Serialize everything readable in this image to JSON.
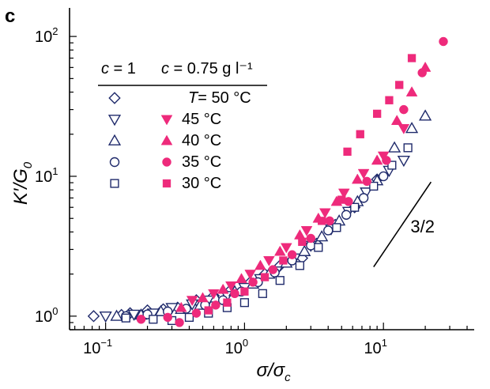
{
  "panel_label": "c",
  "colors": {
    "open": "#1f2a6b",
    "filled": "#ee2a7b",
    "axis": "#000000"
  },
  "chart_data": {
    "type": "scatter",
    "title": "",
    "xlabel": "σ/σc",
    "ylabel": "K′/G0",
    "xscale": "log",
    "yscale": "log",
    "xlim": [
      0.055,
      45
    ],
    "ylim": [
      0.8,
      160
    ],
    "xticks": [
      0.1,
      1,
      10
    ],
    "xtick_labels": [
      {
        "base": "10",
        "exp": "−1"
      },
      {
        "base": "10",
        "exp": "0"
      },
      {
        "base": "10",
        "exp": "1"
      }
    ],
    "yticks": [
      1,
      10,
      100
    ],
    "ytick_labels": [
      {
        "base": "10",
        "exp": "0"
      },
      {
        "base": "10",
        "exp": "1"
      },
      {
        "base": "10",
        "exp": "2"
      }
    ],
    "legend": {
      "placement": "top-left",
      "col1_header": "c = 1",
      "col2_header": "c = 0.75 g l⁻¹",
      "entries": [
        {
          "label": "T= 50 °C",
          "open_marker": "diamond",
          "filled_marker": null
        },
        {
          "label": "45 °C",
          "open_marker": "triangle-down",
          "filled_marker": "triangle-down"
        },
        {
          "label": "40 °C",
          "open_marker": "triangle-up",
          "filled_marker": "triangle-up"
        },
        {
          "label": "35 °C",
          "open_marker": "circle",
          "filled_marker": "circle"
        },
        {
          "label": "30 °C",
          "open_marker": "square",
          "filled_marker": "square"
        }
      ]
    },
    "annotation": {
      "text": "3/2",
      "slope": 1.5,
      "x0": 8.5,
      "y0": 2.25,
      "x1": 22,
      "y1": 9.1
    },
    "series": [
      {
        "concentration": "c = 1",
        "temperature": "50 °C",
        "marker": "diamond",
        "filled": false,
        "points": [
          [
            0.082,
            1.0
          ],
          [
            0.13,
            1.02
          ],
          [
            0.15,
            1.05
          ],
          [
            0.2,
            1.1
          ],
          [
            0.26,
            1.12
          ],
          [
            0.33,
            1.15
          ],
          [
            0.45,
            1.3
          ],
          [
            0.6,
            1.4
          ],
          [
            0.8,
            1.55
          ],
          [
            1.1,
            1.75
          ],
          [
            1.4,
            2.0
          ],
          [
            1.8,
            2.3
          ],
          [
            2.6,
            2.6
          ],
          [
            3.3,
            3.3
          ],
          [
            4.5,
            4.5
          ],
          [
            6.2,
            6.0
          ],
          [
            9.0,
            9.5
          ]
        ]
      },
      {
        "concentration": "c = 1",
        "temperature": "45 °C",
        "marker": "triangle-down",
        "filled": false,
        "points": [
          [
            0.1,
            1.0
          ],
          [
            0.16,
            1.03
          ],
          [
            0.22,
            1.05
          ],
          [
            0.3,
            1.15
          ],
          [
            0.42,
            1.22
          ],
          [
            0.55,
            1.3
          ],
          [
            0.75,
            1.4
          ],
          [
            1.0,
            1.6
          ],
          [
            1.3,
            1.85
          ],
          [
            1.7,
            2.1
          ],
          [
            2.3,
            2.6
          ],
          [
            3.0,
            3.2
          ],
          [
            4.2,
            4.2
          ],
          [
            5.6,
            5.6
          ],
          [
            7.5,
            7.7
          ],
          [
            11,
            11
          ],
          [
            14,
            13
          ]
        ]
      },
      {
        "concentration": "c = 1",
        "temperature": "40 °C",
        "marker": "triangle-up",
        "filled": false,
        "points": [
          [
            0.12,
            1.0
          ],
          [
            0.18,
            1.02
          ],
          [
            0.25,
            1.08
          ],
          [
            0.35,
            1.12
          ],
          [
            0.48,
            1.2
          ],
          [
            0.62,
            1.35
          ],
          [
            0.85,
            1.5
          ],
          [
            1.15,
            1.7
          ],
          [
            1.5,
            2.0
          ],
          [
            2.0,
            2.4
          ],
          [
            2.7,
            2.9
          ],
          [
            3.6,
            3.7
          ],
          [
            4.8,
            4.8
          ],
          [
            6.5,
            6.6
          ],
          [
            9.0,
            9.3
          ],
          [
            12,
            16
          ],
          [
            16,
            22
          ],
          [
            20,
            27
          ]
        ]
      },
      {
        "concentration": "c = 1",
        "temperature": "35 °C",
        "marker": "circle",
        "filled": false,
        "points": [
          [
            0.14,
            1.0
          ],
          [
            0.2,
            1.03
          ],
          [
            0.28,
            1.08
          ],
          [
            0.38,
            1.13
          ],
          [
            0.52,
            1.2
          ],
          [
            0.7,
            1.3
          ],
          [
            0.95,
            1.5
          ],
          [
            1.25,
            1.75
          ],
          [
            1.65,
            2.05
          ],
          [
            2.2,
            2.5
          ],
          [
            3.0,
            3.2
          ],
          [
            4.0,
            4.1
          ],
          [
            5.4,
            5.3
          ],
          [
            7.2,
            7.0
          ],
          [
            10,
            10
          ]
        ]
      },
      {
        "concentration": "c = 1",
        "temperature": "30 °C",
        "marker": "square",
        "filled": false,
        "points": [
          [
            0.14,
            0.97
          ],
          [
            0.22,
            0.95
          ],
          [
            0.3,
            0.93
          ],
          [
            0.4,
            0.98
          ],
          [
            0.55,
            1.05
          ],
          [
            0.75,
            1.15
          ],
          [
            1.0,
            1.25
          ],
          [
            1.35,
            1.45
          ],
          [
            1.8,
            1.8
          ],
          [
            2.5,
            2.3
          ],
          [
            3.4,
            3.1
          ],
          [
            4.6,
            4.3
          ],
          [
            6.2,
            6.0
          ],
          [
            8.5,
            8.5
          ],
          [
            11.5,
            12
          ],
          [
            15,
            16
          ]
        ]
      },
      {
        "concentration": "c = 0.75 g l⁻¹",
        "temperature": "45 °C",
        "marker": "triangle-down",
        "filled": true,
        "points": [
          [
            0.42,
            1.3
          ],
          [
            0.6,
            1.45
          ],
          [
            0.8,
            1.65
          ],
          [
            1.1,
            2.0
          ],
          [
            1.5,
            2.5
          ],
          [
            2.0,
            3.1
          ],
          [
            2.8,
            4.1
          ],
          [
            3.8,
            5.5
          ],
          [
            5.2,
            7.6
          ],
          [
            7.2,
            10.5
          ],
          [
            10,
            14
          ],
          [
            14,
            22
          ]
        ]
      },
      {
        "concentration": "c = 0.75 g l⁻¹",
        "temperature": "40 °C",
        "marker": "triangle-up",
        "filled": true,
        "points": [
          [
            0.35,
            1.15
          ],
          [
            0.5,
            1.35
          ],
          [
            0.7,
            1.55
          ],
          [
            0.95,
            1.85
          ],
          [
            1.3,
            2.3
          ],
          [
            1.8,
            2.9
          ],
          [
            2.5,
            3.8
          ],
          [
            3.4,
            5.0
          ],
          [
            4.6,
            6.6
          ],
          [
            6.5,
            9.5
          ],
          [
            9,
            13
          ],
          [
            12.5,
            25
          ],
          [
            16,
            40
          ],
          [
            20,
            60
          ]
        ]
      },
      {
        "concentration": "c = 0.75 g l⁻¹",
        "temperature": "35 °C",
        "marker": "circle",
        "filled": true,
        "points": [
          [
            0.18,
            0.95
          ],
          [
            0.28,
            0.98
          ],
          [
            0.34,
            0.9
          ],
          [
            0.45,
            1.05
          ],
          [
            0.62,
            1.2
          ],
          [
            0.85,
            1.45
          ],
          [
            1.15,
            1.75
          ],
          [
            1.6,
            2.15
          ],
          [
            2.2,
            2.75
          ],
          [
            3.0,
            3.6
          ],
          [
            4.1,
            4.8
          ],
          [
            5.6,
            6.6
          ],
          [
            7.6,
            9.2
          ],
          [
            10.5,
            13
          ],
          [
            14,
            30
          ],
          [
            19,
            55
          ],
          [
            27,
            92
          ]
        ]
      },
      {
        "concentration": "c = 0.75 g l⁻¹",
        "temperature": "30 °C",
        "marker": "square",
        "filled": true,
        "points": [
          [
            0.55,
            1.1
          ],
          [
            0.75,
            1.25
          ],
          [
            1.0,
            1.5
          ],
          [
            1.4,
            1.9
          ],
          [
            1.9,
            2.5
          ],
          [
            2.6,
            3.4
          ],
          [
            3.6,
            4.8
          ],
          [
            5.0,
            6.8
          ],
          [
            5.5,
            15
          ],
          [
            6.8,
            20
          ],
          [
            9,
            28
          ],
          [
            11,
            35
          ],
          [
            13,
            45
          ],
          [
            16,
            70
          ]
        ]
      }
    ]
  }
}
